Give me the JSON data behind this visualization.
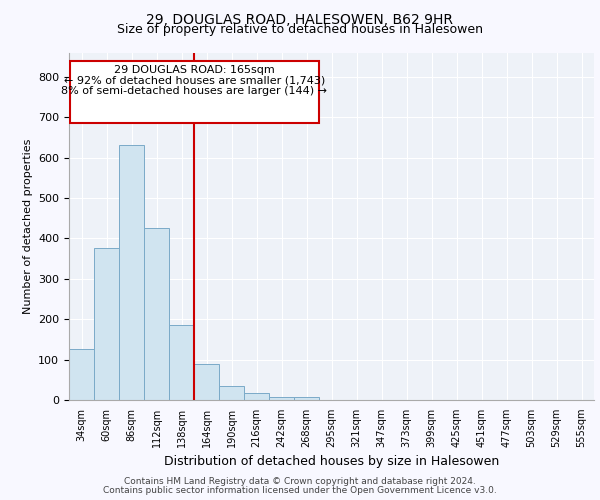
{
  "title1": "29, DOUGLAS ROAD, HALESOWEN, B62 9HR",
  "title2": "Size of property relative to detached houses in Halesowen",
  "xlabel": "Distribution of detached houses by size in Halesowen",
  "ylabel": "Number of detached properties",
  "bar_values": [
    125,
    375,
    630,
    425,
    185,
    90,
    35,
    17,
    7,
    8,
    0,
    0,
    0,
    0,
    0,
    0,
    0,
    0,
    0,
    0,
    0
  ],
  "bar_color": "#d0e4f0",
  "bar_edge_color": "#7aaac8",
  "x_labels": [
    "34sqm",
    "60sqm",
    "86sqm",
    "112sqm",
    "138sqm",
    "164sqm",
    "190sqm",
    "216sqm",
    "242sqm",
    "268sqm",
    "295sqm",
    "321sqm",
    "347sqm",
    "373sqm",
    "399sqm",
    "425sqm",
    "451sqm",
    "477sqm",
    "503sqm",
    "529sqm",
    "555sqm"
  ],
  "ylim": [
    0,
    860
  ],
  "yticks": [
    0,
    100,
    200,
    300,
    400,
    500,
    600,
    700,
    800
  ],
  "annotation_title": "29 DOUGLAS ROAD: 165sqm",
  "annotation_smaller": "← 92% of detached houses are smaller (1,743)",
  "annotation_larger": "8% of semi-detached houses are larger (144) →",
  "annotation_box_color": "#cc0000",
  "vline_color": "#cc0000",
  "vline_x_index": 5,
  "background_color": "#eef2f8",
  "grid_color": "#ffffff",
  "fig_bg_color": "#f8f8ff",
  "footer1": "Contains HM Land Registry data © Crown copyright and database right 2024.",
  "footer2": "Contains public sector information licensed under the Open Government Licence v3.0."
}
